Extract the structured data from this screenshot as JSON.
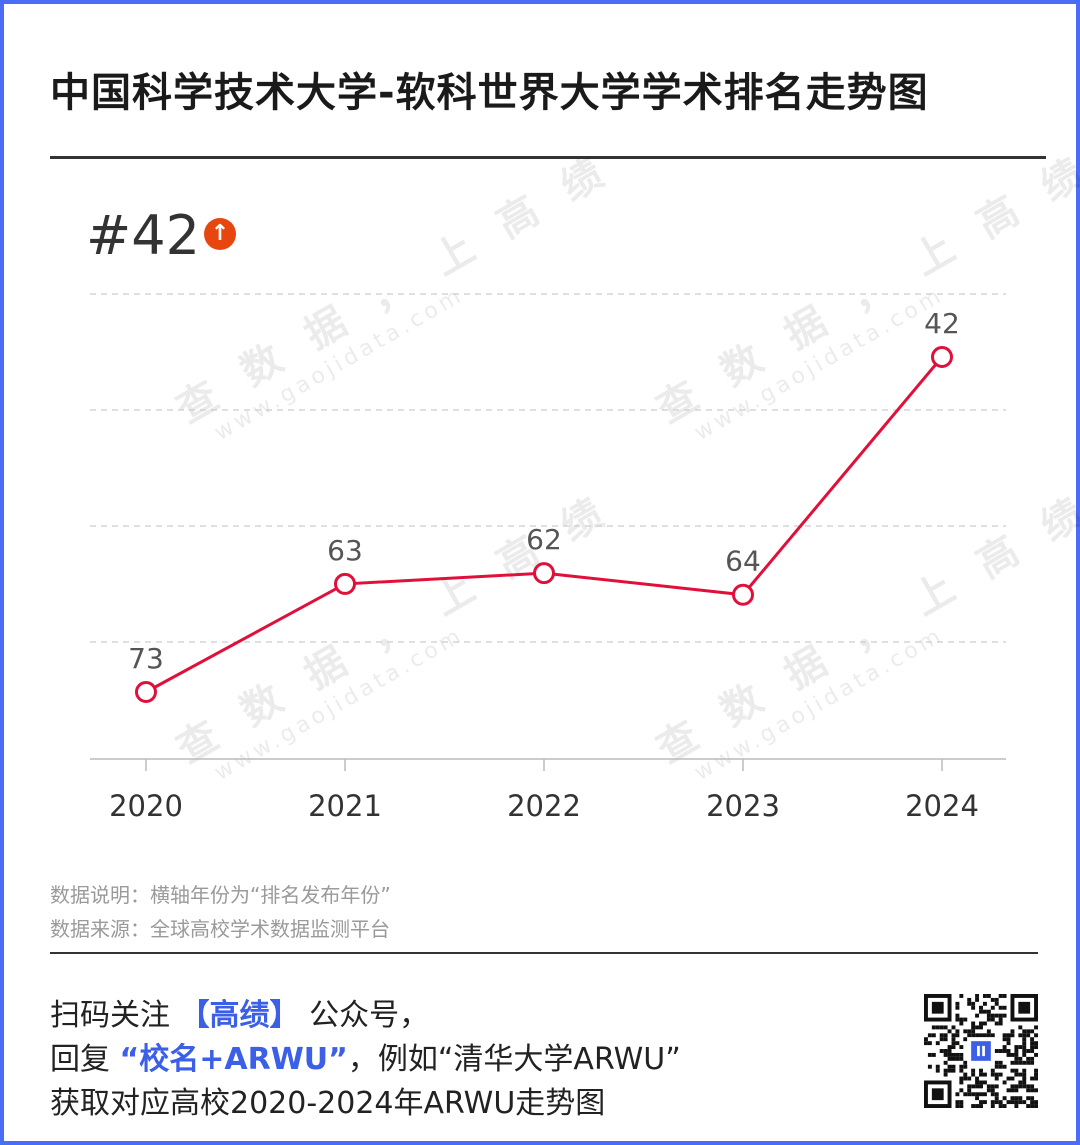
{
  "title": "中国科学技术大学-软科世界大学学术排名走势图",
  "current_rank": "#42",
  "rank_trend_icon": "arrow-up-icon",
  "watermark": {
    "main": "查 数 据 ， 上 高 绩",
    "url": "www.gaojidata.com"
  },
  "notes": {
    "line1": "数据说明：横轴年份为“排名发布年份”",
    "line2": "数据来源：全球高校学术数据监测平台"
  },
  "footer": {
    "line1_a": "扫码关注 ",
    "line1_highlight": "【高绩】",
    "line1_b": " 公众号，",
    "line2_a": "回复 ",
    "line2_highlight": "“校名+ARWU”",
    "line2_b": "，例如“清华大学ARWU”",
    "line3": "获取对应高校2020-2024年ARWU走势图"
  },
  "colors": {
    "accent": "#4a6cf7",
    "line": "#e0103a",
    "arrow_badge": "#e8460f",
    "highlight": "#3b5fe6"
  },
  "chart_data": {
    "type": "line",
    "categories": [
      "2020",
      "2021",
      "2022",
      "2023",
      "2024"
    ],
    "series": [
      {
        "values": [
          73,
          63,
          62,
          64,
          42
        ]
      }
    ],
    "data_labels": [
      "73",
      "63",
      "62",
      "64",
      "42"
    ],
    "y_axis_inverted": true,
    "y_tick_labels_shown": false,
    "grid": "horizontal-dashed",
    "legend": "none"
  }
}
